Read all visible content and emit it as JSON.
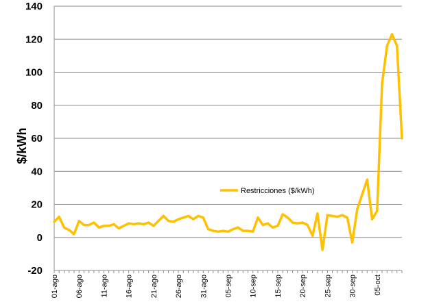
{
  "chart_data": {
    "type": "line",
    "title": "",
    "xlabel": "",
    "ylabel": "$/kWh",
    "ylim": [
      -20,
      140
    ],
    "yticks": [
      -20,
      0,
      20,
      40,
      60,
      80,
      100,
      120,
      140
    ],
    "grid": "horizontal",
    "legend_position": "center-right",
    "x_tick_labels": [
      "01-ago",
      "06-ago",
      "11-ago",
      "16-ago",
      "21-ago",
      "26-ago",
      "31-ago",
      "05-sep",
      "10-sep",
      "15-sep",
      "20-sep",
      "25-sep",
      "30-sep",
      "05-oct"
    ],
    "x_tick_indices": [
      0,
      5,
      10,
      15,
      20,
      25,
      30,
      35,
      40,
      45,
      50,
      55,
      60,
      65
    ],
    "series": [
      {
        "name": "Restricciones ($/kWh)",
        "color": "#FFC000",
        "values": [
          9.5,
          12.5,
          6,
          4.5,
          2,
          10,
          7.5,
          7.5,
          9,
          6,
          7,
          7,
          8,
          5.5,
          7,
          8.5,
          8,
          8.5,
          8,
          9,
          7,
          10,
          13,
          10,
          9.5,
          11,
          12,
          13,
          11,
          13,
          12,
          5,
          4,
          3.5,
          4,
          3.5,
          5,
          6,
          4,
          4,
          3.5,
          12,
          7.5,
          8.5,
          6,
          7,
          14,
          12,
          9,
          8.5,
          9,
          7.5,
          1,
          14.5,
          -7.5,
          13.5,
          13,
          12.5,
          13.5,
          12,
          -3,
          17,
          26,
          35,
          11,
          16,
          93,
          116,
          123,
          116,
          60
        ]
      }
    ]
  }
}
